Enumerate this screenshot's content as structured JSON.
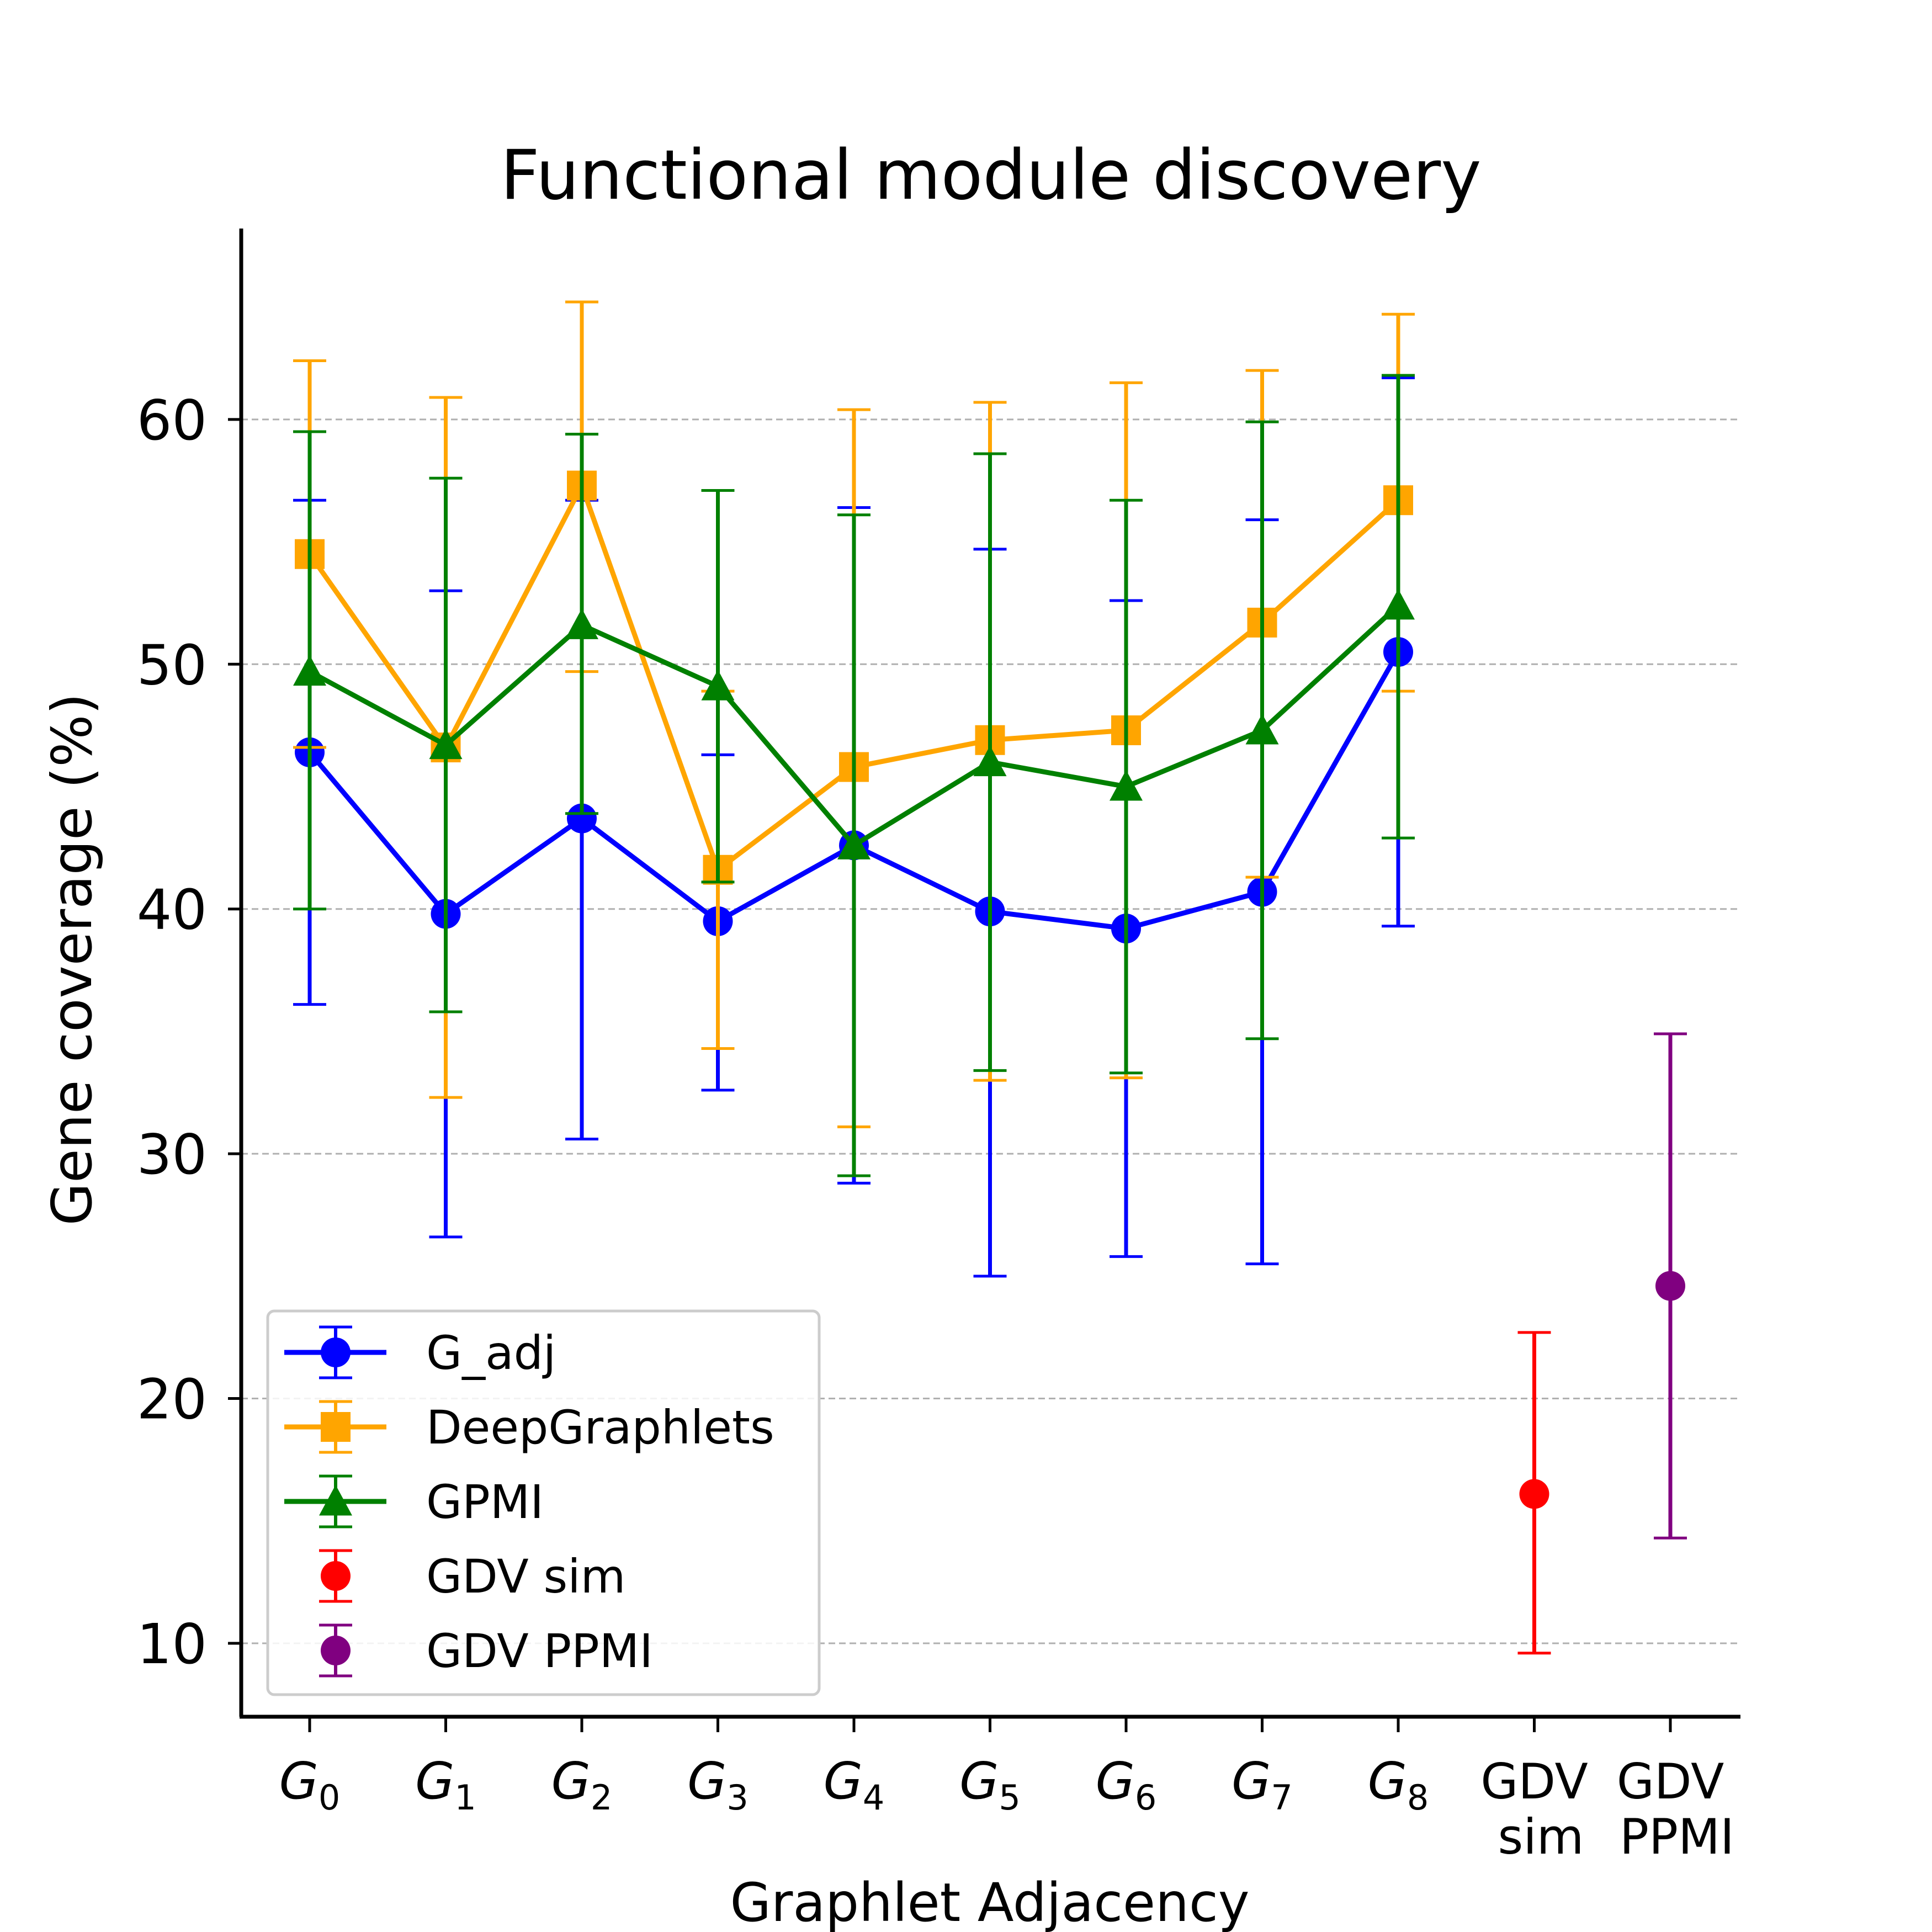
{
  "chart_data": {
    "type": "line",
    "title": "Functional module discovery",
    "xlabel": "Graphlet Adjacency",
    "ylabel": "Gene coverage (%)",
    "ylim": [
      7.0,
      67.8
    ],
    "yticks": [
      10,
      20,
      30,
      40,
      50,
      60
    ],
    "grid": "y-dashed",
    "legend_position": "lower-left",
    "categories": [
      {
        "base": "G",
        "sub": "0"
      },
      {
        "base": "G",
        "sub": "1"
      },
      {
        "base": "G",
        "sub": "2"
      },
      {
        "base": "G",
        "sub": "3"
      },
      {
        "base": "G",
        "sub": "4"
      },
      {
        "base": "G",
        "sub": "5"
      },
      {
        "base": "G",
        "sub": "6"
      },
      {
        "base": "G",
        "sub": "7"
      },
      {
        "base": "G",
        "sub": "8"
      },
      {
        "line1": "GDV",
        "line2": "sim"
      },
      {
        "line1": "GDV",
        "line2": "PPMI"
      }
    ],
    "series": [
      {
        "name": "G_adj",
        "color": "#0000ff",
        "marker": "circle",
        "line": true,
        "x": [
          0,
          1,
          2,
          3,
          4,
          5,
          6,
          7,
          8
        ],
        "values": [
          46.4,
          39.8,
          43.7,
          39.5,
          42.6,
          39.9,
          39.2,
          40.7,
          50.5
        ],
        "err_low": [
          36.1,
          26.6,
          30.6,
          32.6,
          28.8,
          25.0,
          25.8,
          25.5,
          39.3
        ],
        "err_high": [
          56.7,
          53.0,
          56.7,
          46.3,
          56.4,
          54.7,
          52.6,
          55.9,
          61.7
        ]
      },
      {
        "name": "DeepGraphlets",
        "color": "#ffa500",
        "marker": "square",
        "line": true,
        "x": [
          0,
          1,
          2,
          3,
          4,
          5,
          6,
          7,
          8
        ],
        "values": [
          54.5,
          46.6,
          57.3,
          41.6,
          45.8,
          46.9,
          47.3,
          51.7,
          56.7
        ],
        "err_low": [
          46.6,
          32.3,
          49.7,
          34.3,
          31.1,
          33.0,
          33.1,
          41.3,
          48.9
        ],
        "err_high": [
          62.4,
          60.9,
          64.8,
          48.9,
          60.4,
          60.7,
          61.5,
          62.0,
          64.3
        ]
      },
      {
        "name": "GPMI",
        "color": "#008000",
        "marker": "triangle",
        "line": true,
        "x": [
          0,
          1,
          2,
          3,
          4,
          5,
          6,
          7,
          8
        ],
        "values": [
          49.7,
          46.7,
          51.6,
          49.1,
          42.6,
          46.0,
          45.0,
          47.3,
          52.4
        ],
        "err_low": [
          40.0,
          35.8,
          43.9,
          41.1,
          29.1,
          33.4,
          33.3,
          34.7,
          42.9
        ],
        "err_high": [
          59.5,
          57.6,
          59.4,
          57.1,
          56.1,
          58.6,
          56.7,
          59.9,
          61.8
        ]
      },
      {
        "name": "GDV sim",
        "color": "#ff0000",
        "marker": "circle",
        "line": false,
        "x": [
          9
        ],
        "values": [
          16.1
        ],
        "err_low": [
          9.6
        ],
        "err_high": [
          22.7
        ]
      },
      {
        "name": "GDV PPMI",
        "color": "#800080",
        "marker": "circle",
        "line": false,
        "x": [
          10
        ],
        "values": [
          24.6
        ],
        "err_low": [
          14.3
        ],
        "err_high": [
          34.9
        ]
      }
    ]
  }
}
